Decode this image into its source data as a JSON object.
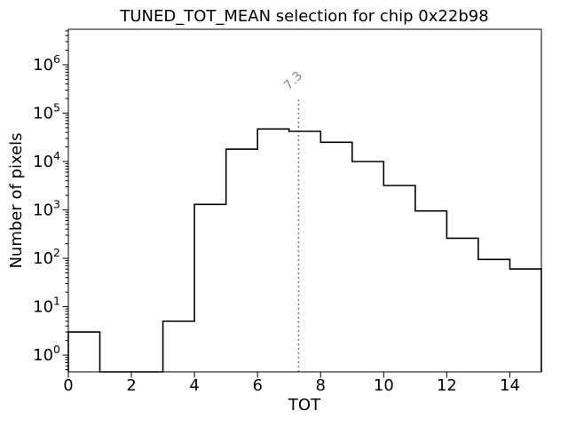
{
  "chart_data": {
    "type": "bar",
    "subtype": "step-histogram",
    "title": "TUNED_TOT_MEAN selection for chip 0x22b98",
    "xlabel": "TOT",
    "ylabel": "Number of pixels",
    "yscale": "log",
    "grid": false,
    "legend": false,
    "xlim": [
      0,
      15
    ],
    "ylim": [
      0.45,
      5400000
    ],
    "bin_edges": [
      0,
      1,
      2,
      3,
      4,
      5,
      6,
      7,
      8,
      9,
      10,
      11,
      12,
      13,
      14,
      15
    ],
    "counts": [
      3,
      0,
      0,
      5,
      1300,
      18000,
      47000,
      42000,
      25000,
      10000,
      3200,
      950,
      260,
      95,
      60
    ],
    "x_ticks": [
      0,
      2,
      4,
      6,
      8,
      10,
      12,
      14
    ],
    "x_tick_labels": [
      "0",
      "2",
      "4",
      "6",
      "8",
      "10",
      "12",
      "14"
    ],
    "y_tick_base": "10",
    "y_tick_exponents": [
      "0",
      "1",
      "2",
      "3",
      "4",
      "5",
      "6"
    ],
    "line_color": "#000000",
    "background_color": "#ffffff",
    "vline": {
      "x": 7.3,
      "label": "7.3",
      "color": "#858585",
      "style": "dotted"
    }
  }
}
